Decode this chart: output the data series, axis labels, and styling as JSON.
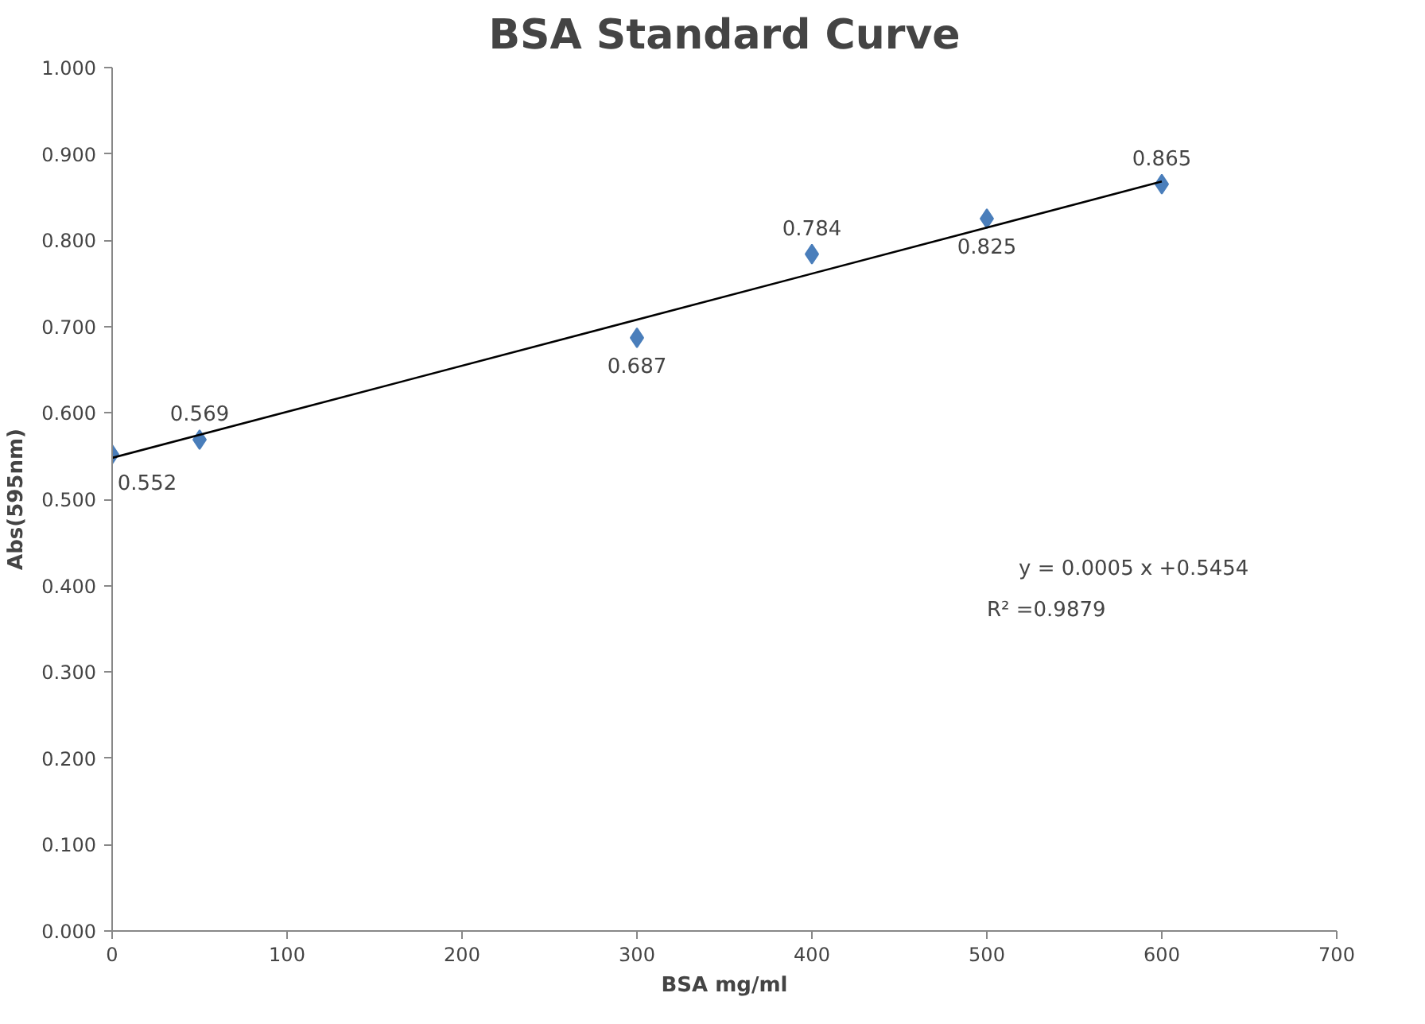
{
  "chart_data": {
    "type": "scatter",
    "title": "BSA Standard Curve",
    "xlabel": "BSA mg/ml",
    "ylabel": "Abs(595nm)",
    "x": [
      0,
      50,
      300,
      400,
      500,
      600
    ],
    "series": [
      {
        "color": "#4a7ebb",
        "values": [
          0.552,
          0.569,
          0.687,
          0.784,
          0.825,
          0.865
        ],
        "data_labels": true,
        "marker": "diamond"
      },
      {
        "type": "line",
        "color": "#000000",
        "x": [
          0,
          600
        ],
        "values": [
          0.548,
          0.868
        ],
        "line_style": "solid"
      }
    ],
    "xlim": [
      0,
      700
    ],
    "xticks": [
      0,
      100,
      200,
      300,
      400,
      500,
      600,
      700
    ],
    "ylim": [
      0,
      1
    ],
    "yticks": [
      {
        "value": 0,
        "label": "0.000"
      },
      {
        "value": 0.1,
        "label": "0.100"
      },
      {
        "value": 0.2,
        "label": "0.200"
      },
      {
        "value": 0.3,
        "label": "0.300"
      },
      {
        "value": 0.4,
        "label": "0.400"
      },
      {
        "value": 0.5,
        "label": "0.500"
      },
      {
        "value": 0.6,
        "label": "0.600"
      },
      {
        "value": 0.7,
        "label": "0.700"
      },
      {
        "value": 0.8,
        "label": "0.800"
      },
      {
        "value": 0.9,
        "label": "0.900"
      },
      {
        "value": 1,
        "label": "1.000"
      }
    ],
    "grid": false,
    "annotations": [
      "y =  0.0005 x +0.5454",
      "R² =0.9879"
    ]
  }
}
